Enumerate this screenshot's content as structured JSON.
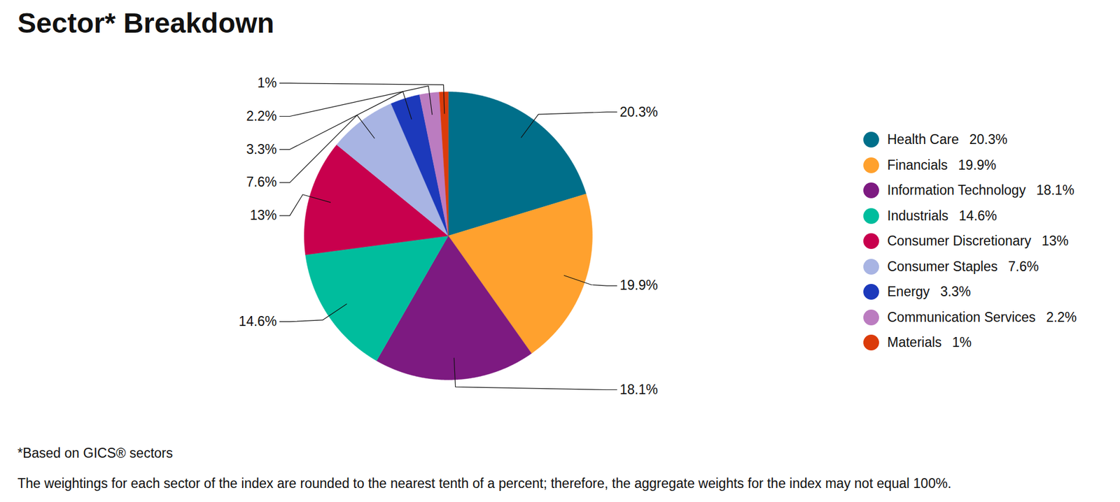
{
  "chart_data": {
    "type": "pie",
    "title": "Sector* Breakdown",
    "categories": [
      "Health Care",
      "Financials",
      "Information Technology",
      "Industrials",
      "Consumer Discretionary",
      "Consumer Staples",
      "Energy",
      "Communication Services",
      "Materials"
    ],
    "values": [
      20.3,
      19.9,
      18.1,
      14.6,
      13,
      7.6,
      3.3,
      2.2,
      1
    ],
    "value_labels": [
      "20.3%",
      "19.9%",
      "18.1%",
      "14.6%",
      "13%",
      "7.6%",
      "3.3%",
      "2.2%",
      "1%"
    ],
    "colors": [
      "#006f8a",
      "#ffa12e",
      "#7d1a81",
      "#00bd9d",
      "#c8004d",
      "#a8b4e3",
      "#1c39bb",
      "#bb7cc0",
      "#db3b0a"
    ],
    "data_labels": true,
    "legend": "right",
    "annotations": [
      "*Based on GICS® sectors",
      "The weightings for each sector of the index are rounded to the nearest tenth of a percent; therefore, the aggregate weights for the index may not equal 100%."
    ]
  }
}
